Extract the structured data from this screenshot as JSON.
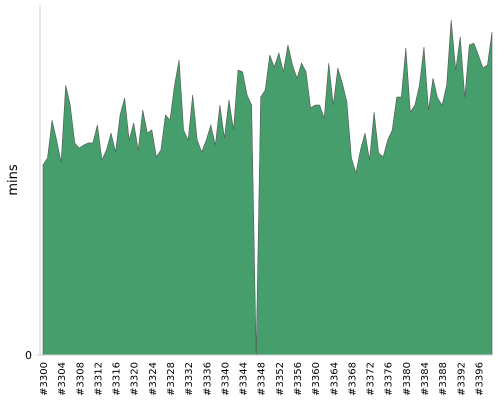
{
  "chart_data": {
    "type": "area",
    "y_label": "mins",
    "color": "#469e6c",
    "ylim": [
      0,
      100
    ],
    "yticks": [
      0
    ],
    "categories": [
      "#3300",
      null,
      null,
      null,
      "#3304",
      null,
      null,
      null,
      "#3308",
      null,
      null,
      null,
      "#3312",
      null,
      null,
      null,
      "#3316",
      null,
      null,
      null,
      "#3320",
      null,
      null,
      null,
      "#3324",
      null,
      null,
      null,
      "#3328",
      null,
      null,
      null,
      "#3332",
      null,
      null,
      null,
      "#3336",
      null,
      null,
      null,
      "#3340",
      null,
      null,
      null,
      "#3344",
      null,
      null,
      null,
      "#3348",
      null,
      null,
      null,
      "#3352",
      null,
      null,
      null,
      "#3356",
      null,
      null,
      null,
      "#3360",
      null,
      null,
      null,
      "#3364",
      null,
      null,
      null,
      "#3368",
      null,
      null,
      null,
      "#3372",
      null,
      null,
      null,
      "#3376",
      null,
      null,
      null,
      "#3380",
      null,
      null,
      null,
      "#3384",
      null,
      null,
      null,
      "#3388",
      null,
      null,
      null,
      "#3392",
      null,
      null,
      null,
      "#3396",
      null,
      null,
      null
    ],
    "values": [
      54.3,
      56.3,
      67.1,
      61.4,
      55.1,
      77.1,
      71.4,
      60.6,
      59.1,
      60,
      60.6,
      60.6,
      65.7,
      55.7,
      58.6,
      63.4,
      58,
      68.6,
      73.4,
      61.4,
      66.3,
      58.6,
      70,
      63.4,
      64.3,
      56.6,
      58.6,
      68.6,
      67.1,
      77.1,
      84.3,
      64.3,
      61.4,
      74.3,
      61.4,
      58,
      61.4,
      65.7,
      60,
      71.4,
      62,
      72.9,
      64.3,
      81.4,
      80.9,
      74.3,
      71.4,
      0,
      73.7,
      75.7,
      85.7,
      82.3,
      86.3,
      80.9,
      88.6,
      82.9,
      79.1,
      83.4,
      80.9,
      70.6,
      71.4,
      71.4,
      67.7,
      83.4,
      71.4,
      82,
      77.7,
      72.3,
      56.3,
      52,
      58.6,
      63.4,
      55.7,
      69.4,
      57.7,
      56.6,
      61.4,
      64.3,
      73.7,
      73.7,
      87.7,
      69.4,
      71.4,
      77.1,
      88,
      70,
      79.1,
      73.4,
      71.4,
      77.1,
      95.7,
      81.4,
      90.9,
      73.7,
      88.6,
      89.1,
      85.7,
      82,
      82.9,
      92.3
    ]
  }
}
